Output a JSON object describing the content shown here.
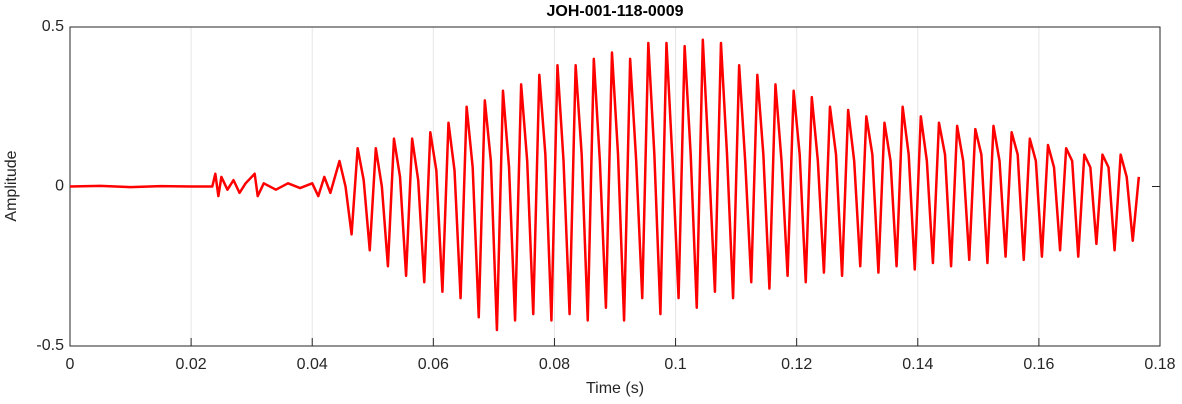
{
  "chart_data": {
    "type": "line",
    "title": "JOH-001-118-0009",
    "x_label": "Time (s)",
    "y_label": "Amplitude",
    "xlim": [
      0,
      0.18
    ],
    "xticks": [
      0,
      0.02,
      0.04,
      0.06,
      0.08,
      0.1,
      0.12,
      0.14,
      0.16,
      0.18
    ],
    "ylim": [
      -0.5,
      0.5
    ],
    "yticks": [
      -0.5,
      0,
      0.5
    ],
    "grid": "x",
    "color": "#ff0000",
    "x": [
      0,
      0.005,
      0.01,
      0.015,
      0.02,
      0.0235,
      0.024,
      0.0245,
      0.025,
      0.026,
      0.027,
      0.028,
      0.029,
      0.0305,
      0.031,
      0.032,
      0.034,
      0.036,
      0.038,
      0.04,
      0.041,
      0.042,
      0.043,
      0.0445,
      0.0455,
      0.0465,
      0.0475,
      0.0485,
      0.0495,
      0.0505,
      0.0515,
      0.0525,
      0.0535,
      0.0545,
      0.0555,
      0.0565,
      0.0575,
      0.0585,
      0.0595,
      0.0605,
      0.0615,
      0.0625,
      0.0635,
      0.0645,
      0.0655,
      0.0665,
      0.0675,
      0.0685,
      0.0695,
      0.0705,
      0.0715,
      0.0725,
      0.0735,
      0.0745,
      0.0755,
      0.0765,
      0.0775,
      0.0785,
      0.0795,
      0.0805,
      0.0815,
      0.0825,
      0.0835,
      0.0845,
      0.0855,
      0.0865,
      0.0875,
      0.0885,
      0.0895,
      0.0905,
      0.0915,
      0.0925,
      0.0935,
      0.0945,
      0.0955,
      0.0965,
      0.0975,
      0.0985,
      0.0995,
      0.1005,
      0.1015,
      0.1025,
      0.1035,
      0.1045,
      0.1055,
      0.1065,
      0.1075,
      0.1085,
      0.1095,
      0.1105,
      0.1115,
      0.1125,
      0.1135,
      0.1145,
      0.1155,
      0.1165,
      0.1175,
      0.1185,
      0.1195,
      0.1205,
      0.1215,
      0.1225,
      0.1235,
      0.1245,
      0.1255,
      0.1265,
      0.1275,
      0.1285,
      0.1295,
      0.1305,
      0.1315,
      0.1325,
      0.1335,
      0.1345,
      0.1355,
      0.1365,
      0.1375,
      0.1385,
      0.1395,
      0.1405,
      0.1415,
      0.1425,
      0.1435,
      0.1445,
      0.1455,
      0.1465,
      0.1475,
      0.1485,
      0.1495,
      0.1505,
      0.1515,
      0.1525,
      0.1535,
      0.1545,
      0.1555,
      0.1565,
      0.1575,
      0.1585,
      0.1595,
      0.1605,
      0.1615,
      0.1625,
      0.1635,
      0.1645,
      0.1655,
      0.1665,
      0.1675,
      0.1685,
      0.1695,
      0.1705,
      0.1715,
      0.1725,
      0.1735,
      0.1745,
      0.1755,
      0.1765
    ],
    "values": [
      0,
      0.002,
      -0.002,
      0.001,
      0,
      0,
      0.04,
      -0.03,
      0.03,
      -0.01,
      0.02,
      -0.02,
      0.01,
      0.04,
      -0.03,
      0.01,
      -0.01,
      0.01,
      -0.005,
      0.01,
      -0.03,
      0.03,
      -0.02,
      0.08,
      0,
      -0.15,
      0.12,
      0.02,
      -0.2,
      0.12,
      0,
      -0.25,
      0.15,
      0.03,
      -0.28,
      0.15,
      0.02,
      -0.3,
      0.17,
      0.05,
      -0.33,
      0.2,
      0.05,
      -0.35,
      0.25,
      0.06,
      -0.41,
      0.27,
      0.08,
      -0.45,
      0.3,
      0.06,
      -0.42,
      0.32,
      0.08,
      -0.4,
      0.35,
      0.1,
      -0.42,
      0.38,
      0.08,
      -0.4,
      0.38,
      0.1,
      -0.42,
      0.4,
      0.08,
      -0.38,
      0.42,
      0.1,
      -0.42,
      0.4,
      0.08,
      -0.35,
      0.45,
      0.1,
      -0.4,
      0.45,
      0.08,
      -0.35,
      0.44,
      0.1,
      -0.38,
      0.46,
      0.08,
      -0.33,
      0.45,
      0.1,
      -0.35,
      0.38,
      0.08,
      -0.3,
      0.35,
      0.1,
      -0.32,
      0.32,
      0.08,
      -0.28,
      0.3,
      0.1,
      -0.3,
      0.28,
      0.08,
      -0.27,
      0.25,
      0.1,
      -0.28,
      0.24,
      0.08,
      -0.25,
      0.22,
      0.1,
      -0.27,
      0.2,
      0.08,
      -0.25,
      0.25,
      0.1,
      -0.26,
      0.22,
      0.08,
      -0.24,
      0.2,
      0.1,
      -0.25,
      0.19,
      0.08,
      -0.23,
      0.18,
      0.1,
      -0.24,
      0.19,
      0.08,
      -0.22,
      0.17,
      0.1,
      -0.23,
      0.15,
      0.08,
      -0.22,
      0.13,
      0.06,
      -0.2,
      0.12,
      0.08,
      -0.22,
      0.1,
      0.06,
      -0.18,
      0.1,
      0.06,
      -0.2,
      0.1,
      0.03,
      -0.17,
      0.03
    ]
  }
}
